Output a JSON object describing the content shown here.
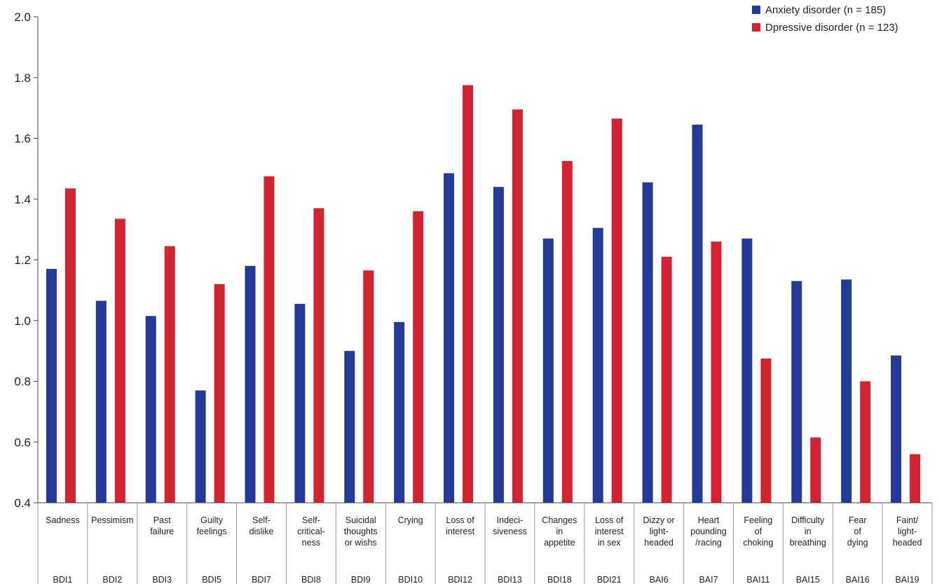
{
  "chart_data": {
    "type": "bar",
    "ylim": [
      0.4,
      2.0
    ],
    "yticks": [
      "0.4",
      "0.6",
      "0.8",
      "1.0",
      "1.2",
      "1.4",
      "1.6",
      "1.8",
      "2.0"
    ],
    "legend_position": "top-right",
    "grid": false,
    "categories": [
      {
        "label": [
          "Sadness"
        ],
        "code": "BDI1"
      },
      {
        "label": [
          "Pessimism"
        ],
        "code": "BDI2"
      },
      {
        "label": [
          "Past",
          "failure"
        ],
        "code": "BDI3"
      },
      {
        "label": [
          "Guilty",
          "feelings"
        ],
        "code": "BDI5"
      },
      {
        "label": [
          "Self-",
          "dislike"
        ],
        "code": "BDI7"
      },
      {
        "label": [
          "Self-",
          "critical-",
          "ness"
        ],
        "code": "BDI8"
      },
      {
        "label": [
          "Suicidal",
          "thoughts",
          "or wishs"
        ],
        "code": "BDI9"
      },
      {
        "label": [
          "Crying"
        ],
        "code": "BDI10"
      },
      {
        "label": [
          "Loss of",
          "interest"
        ],
        "code": "BDI12"
      },
      {
        "label": [
          "Indeci-",
          "siveness"
        ],
        "code": "BDI13"
      },
      {
        "label": [
          "Changes",
          "in",
          "appetite"
        ],
        "code": "BDI18"
      },
      {
        "label": [
          "Loss of",
          "interest",
          "in sex"
        ],
        "code": "BDI21"
      },
      {
        "label": [
          "Dizzy or",
          "light-",
          "headed"
        ],
        "code": "BAI6"
      },
      {
        "label": [
          "Heart",
          "pounding",
          "/racing"
        ],
        "code": "BAI7"
      },
      {
        "label": [
          "Feeling",
          "of",
          "choking"
        ],
        "code": "BAI11"
      },
      {
        "label": [
          "Difficulty",
          "in",
          "breathing"
        ],
        "code": "BAI15"
      },
      {
        "label": [
          "Fear",
          "of",
          "dying"
        ],
        "code": "BAI16"
      },
      {
        "label": [
          "Faint/",
          "light-",
          "headed"
        ],
        "code": "BAI19"
      }
    ],
    "series": [
      {
        "name": "Anxiety disorder (n = 185)",
        "color": "#233a99",
        "values": [
          1.17,
          1.065,
          1.015,
          0.77,
          1.18,
          1.055,
          0.9,
          0.995,
          1.485,
          1.44,
          1.27,
          1.305,
          1.455,
          1.645,
          1.27,
          1.13,
          1.135,
          0.885
        ]
      },
      {
        "name": "Dpressive disorder (n = 123)",
        "color": "#d42330",
        "values": [
          1.435,
          1.335,
          1.245,
          1.12,
          1.475,
          1.37,
          1.165,
          1.36,
          1.775,
          1.695,
          1.525,
          1.665,
          1.21,
          1.26,
          0.875,
          0.615,
          0.8,
          0.56
        ]
      }
    ]
  }
}
